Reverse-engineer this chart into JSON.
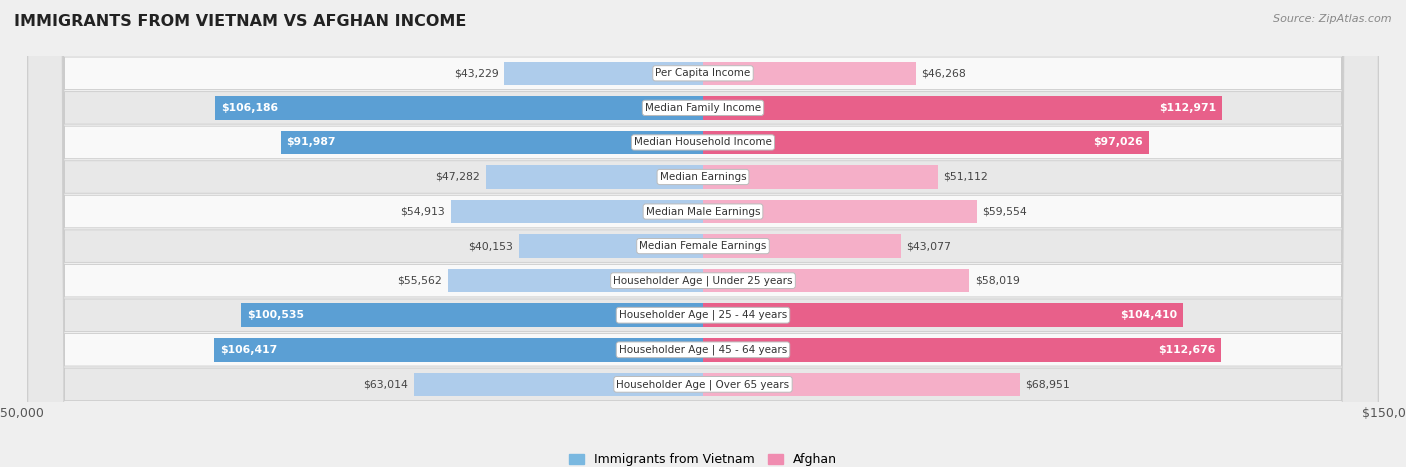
{
  "title": "IMMIGRANTS FROM VIETNAM VS AFGHAN INCOME",
  "source": "Source: ZipAtlas.com",
  "categories": [
    "Per Capita Income",
    "Median Family Income",
    "Median Household Income",
    "Median Earnings",
    "Median Male Earnings",
    "Median Female Earnings",
    "Householder Age | Under 25 years",
    "Householder Age | 25 - 44 years",
    "Householder Age | 45 - 64 years",
    "Householder Age | Over 65 years"
  ],
  "vietnam_values": [
    43229,
    106186,
    91987,
    47282,
    54913,
    40153,
    55562,
    100535,
    106417,
    63014
  ],
  "afghan_values": [
    46268,
    112971,
    97026,
    51112,
    59554,
    43077,
    58019,
    104410,
    112676,
    68951
  ],
  "vietnam_labels": [
    "$43,229",
    "$106,186",
    "$91,987",
    "$47,282",
    "$54,913",
    "$40,153",
    "$55,562",
    "$100,535",
    "$106,417",
    "$63,014"
  ],
  "afghan_labels": [
    "$46,268",
    "$112,971",
    "$97,026",
    "$51,112",
    "$59,554",
    "$43,077",
    "$58,019",
    "$104,410",
    "$112,676",
    "$68,951"
  ],
  "vietnam_color_light": "#aecceb",
  "vietnam_color_dark": "#5b9fd4",
  "afghan_color_light": "#f5afc8",
  "afghan_color_dark": "#e8608a",
  "max_value": 150000,
  "background_color": "#efefef",
  "row_bg_even": "#f9f9f9",
  "row_bg_odd": "#e8e8e8",
  "vietnam_label_dark_threshold": 80000,
  "afghan_label_dark_threshold": 80000,
  "legend_viet_color": "#7ab8e0",
  "legend_afgh_color": "#f08cb0"
}
